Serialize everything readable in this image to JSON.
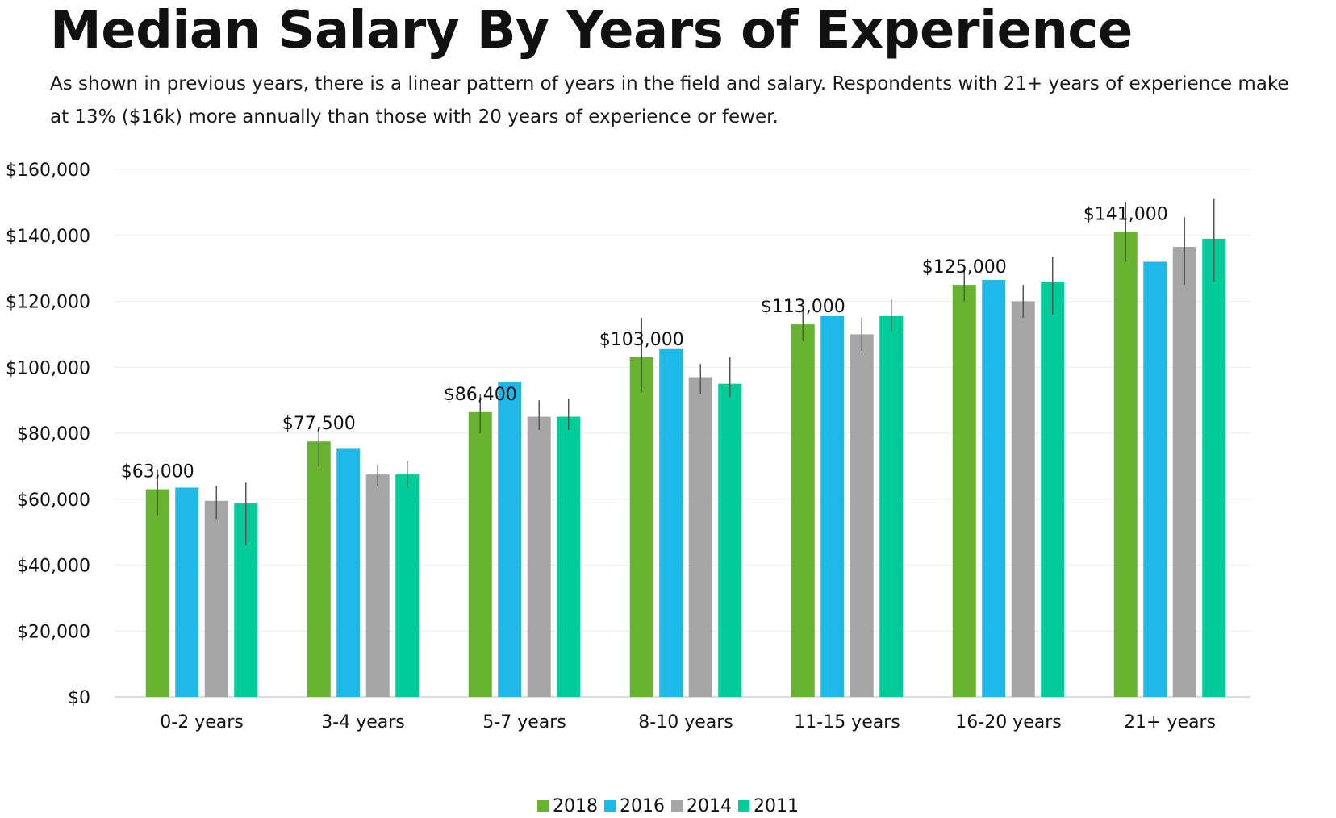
{
  "title": "Median Salary By Years of Experience",
  "subtitle": "As shown in previous years, there is a linear pattern of years in the field and salary. Respondents with 21+ years of experience make at 13% ($16k) more annually than those with 20 years of experience or fewer.",
  "chart_data": {
    "type": "bar",
    "title": "Median Salary By Years of Experience",
    "xlabel": "",
    "ylabel": "",
    "ylim": [
      0,
      160000
    ],
    "yticks": [
      "$0",
      "$20,000",
      "$40,000",
      "$60,000",
      "$80,000",
      "$100,000",
      "$120,000",
      "$140,000",
      "$160,000"
    ],
    "categories": [
      "0-2 years",
      "3-4 years",
      "5-7 years",
      "8-10 years",
      "11-15 years",
      "16-20 years",
      "21+ years"
    ],
    "series": [
      {
        "name": "2018",
        "color": "#67B22F",
        "values": [
          63000,
          77500,
          86400,
          103000,
          113000,
          125000,
          141000
        ],
        "errors": [
          [
            55000,
            69000
          ],
          [
            70000,
            82000
          ],
          [
            80000,
            92000
          ],
          [
            92500,
            115000
          ],
          [
            108000,
            118000
          ],
          [
            120000,
            130000
          ],
          [
            132000,
            150000
          ]
        ],
        "data_labels": [
          "$63,000",
          "$77,500",
          "$86,400",
          "$103,000",
          "$113,000",
          "$125,000",
          "$141,000"
        ]
      },
      {
        "name": "2016",
        "color": "#1DB9E8",
        "values": [
          63500,
          75500,
          95500,
          105500,
          115500,
          126500,
          132000
        ]
      },
      {
        "name": "2014",
        "color": "#A6A6A6",
        "values": [
          59500,
          67500,
          85000,
          97000,
          110000,
          120000,
          136500
        ],
        "errors": [
          [
            54000,
            64000
          ],
          [
            64000,
            70500
          ],
          [
            81000,
            90000
          ],
          [
            92000,
            101000
          ],
          [
            105000,
            115000
          ],
          [
            115000,
            125000
          ],
          [
            125000,
            145500
          ]
        ]
      },
      {
        "name": "2011",
        "color": "#00CC99",
        "values": [
          58700,
          67500,
          85000,
          95000,
          115500,
          126000,
          139000
        ],
        "errors": [
          [
            46000,
            65000
          ],
          [
            63500,
            71500
          ],
          [
            81000,
            90500
          ],
          [
            91000,
            103000
          ],
          [
            111000,
            120500
          ],
          [
            116000,
            133500
          ],
          [
            126000,
            151000
          ]
        ]
      }
    ],
    "grid": true,
    "legend_position": "bottom-center"
  }
}
